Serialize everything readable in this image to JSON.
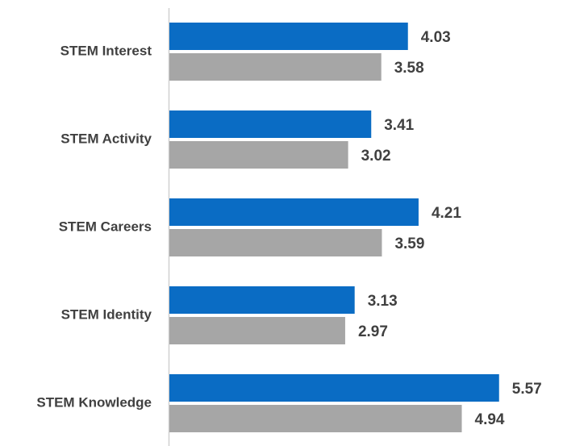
{
  "chart_data": {
    "type": "barh",
    "categories": [
      "STEM Interest",
      "STEM Activity",
      "STEM Careers",
      "STEM Identity",
      "STEM Knowledge"
    ],
    "series": [
      {
        "color": "#0a6cc4",
        "values": [
          4.03,
          3.41,
          4.21,
          3.13,
          5.57
        ]
      },
      {
        "color": "#a6a6a6",
        "values": [
          3.58,
          3.02,
          3.59,
          2.97,
          4.94
        ]
      }
    ],
    "xlim": [
      0,
      6.5
    ]
  }
}
